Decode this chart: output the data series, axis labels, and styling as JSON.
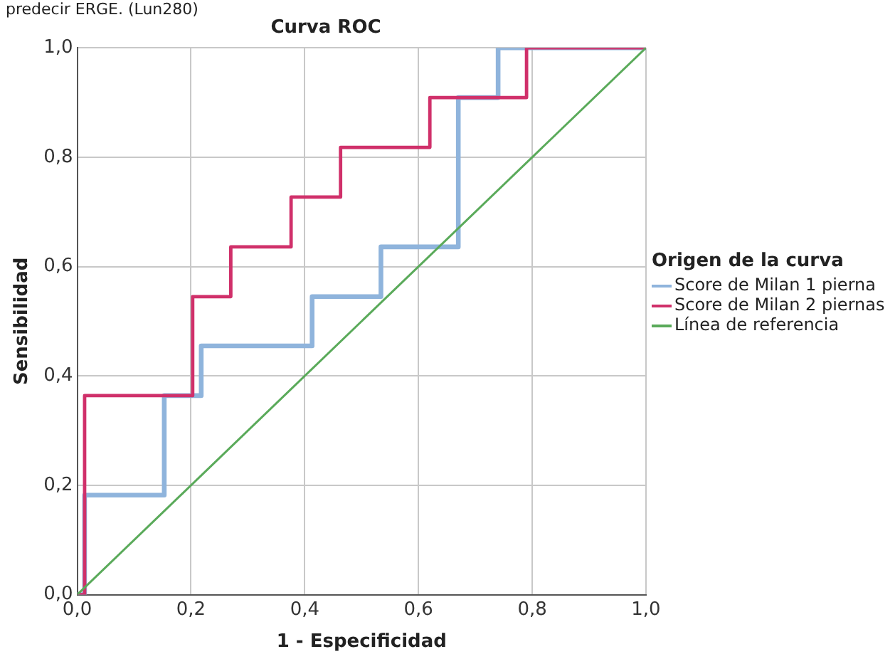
{
  "chart_data": {
    "type": "step",
    "title": "Curva ROC",
    "xlabel": "1 - Especificidad",
    "ylabel": "Sensibilidad",
    "legend_title": "Origen de la curva",
    "annotations": [
      "predecir ERGE. (Lun280)"
    ],
    "xlim": [
      0,
      1
    ],
    "ylim": [
      0,
      1
    ],
    "xticks": [
      {
        "value": 0,
        "label": "0,0"
      },
      {
        "value": 0.2,
        "label": "0,2"
      },
      {
        "value": 0.4,
        "label": "0,4"
      },
      {
        "value": 0.6,
        "label": "0,6"
      },
      {
        "value": 0.8,
        "label": "0,8"
      },
      {
        "value": 1,
        "label": "1,0"
      }
    ],
    "yticks": [
      {
        "value": 0,
        "label": "0,0"
      },
      {
        "value": 0.2,
        "label": "0,2"
      },
      {
        "value": 0.4,
        "label": "0,4"
      },
      {
        "value": 0.6,
        "label": "0,6"
      },
      {
        "value": 0.8,
        "label": "0,8"
      },
      {
        "value": 1,
        "label": "1,0"
      }
    ],
    "grid": true,
    "legend": "right",
    "marker": "none",
    "series": [
      {
        "name": "Score de Milan 1 pierna",
        "color": "#8fb4dc",
        "x": [
          0,
          0.013,
          0.153,
          0.218,
          0.413,
          0.534,
          0.67,
          0.74,
          1
        ],
        "values": [
          0,
          0.182,
          0.364,
          0.455,
          0.545,
          0.636,
          0.909,
          1,
          1
        ]
      },
      {
        "name": "Score de Milan 2 piernas",
        "color": "#d0306a",
        "x": [
          0,
          0.013,
          0.203,
          0.27,
          0.376,
          0.463,
          0.62,
          0.79,
          1
        ],
        "values": [
          0,
          0.364,
          0.545,
          0.636,
          0.727,
          0.818,
          0.909,
          1,
          1
        ]
      },
      {
        "name": "Línea de referencia",
        "type": "line",
        "color": "#5aaa5a",
        "x": [
          0,
          1
        ],
        "values": [
          0,
          1
        ]
      }
    ]
  }
}
